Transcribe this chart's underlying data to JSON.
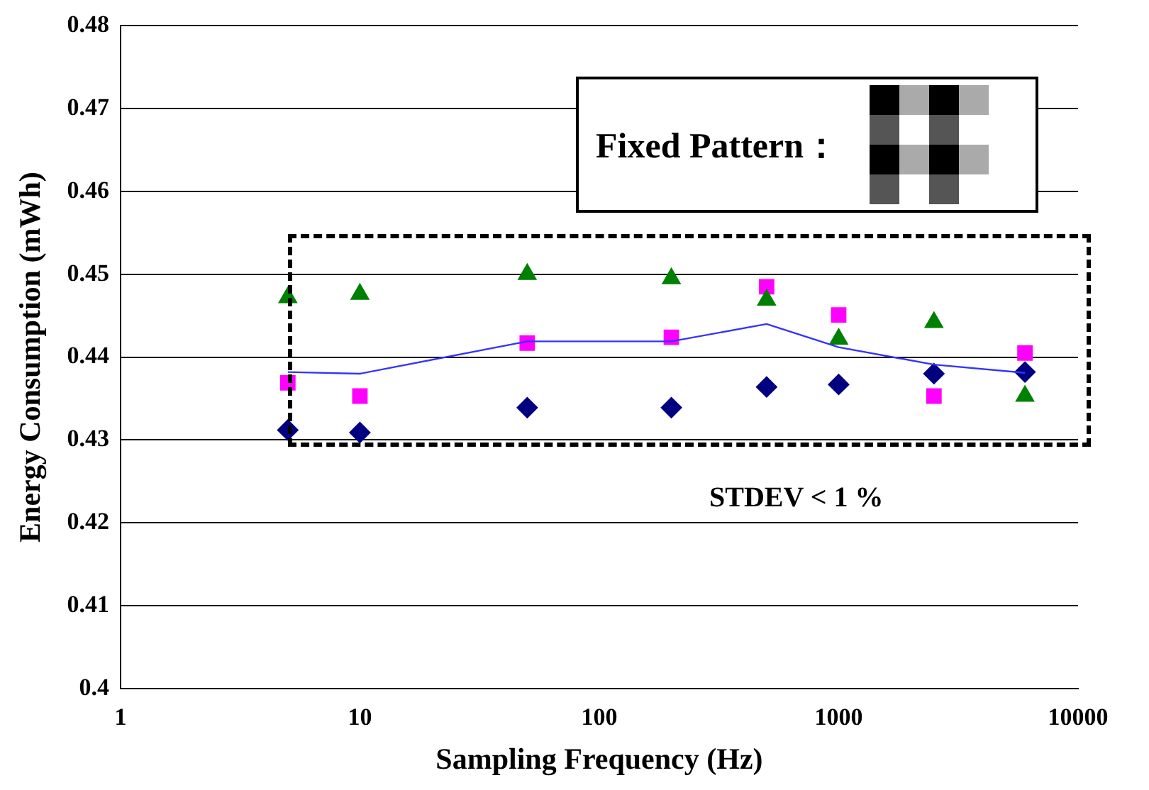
{
  "chart_data": {
    "type": "scatter",
    "xlabel": "Sampling Frequency (Hz)",
    "ylabel": "Energy Consumption (mWh)",
    "x": [
      5,
      10,
      50,
      200,
      500,
      1000,
      2500,
      6000
    ],
    "series": [
      {
        "type": "line",
        "color": "#3333ff",
        "marker": "none",
        "values": [
          0.4382,
          0.438,
          0.4419,
          0.4419,
          0.444,
          0.4412,
          0.4391,
          0.4381
        ]
      },
      {
        "color": "#008000",
        "marker": "triangle",
        "values": [
          0.4472,
          0.4476,
          0.45,
          0.4495,
          0.4469,
          0.4422,
          0.4442,
          0.4353
        ]
      },
      {
        "color": "#ff00ff",
        "marker": "square",
        "values": [
          0.4369,
          0.4353,
          0.4417,
          0.4424,
          0.4485,
          0.4451,
          0.4353,
          0.4405
        ]
      },
      {
        "color": "#000080",
        "marker": "diamond",
        "values": [
          0.4312,
          0.4309,
          0.4339,
          0.4339,
          0.4364,
          0.4367,
          0.438,
          0.4382
        ]
      }
    ],
    "log": "x",
    "xlim": [
      1,
      10000
    ],
    "xticks": [
      1,
      10,
      100,
      1000,
      10000
    ],
    "ylim": [
      0.4,
      0.48
    ],
    "yticks": [
      0.4,
      0.41,
      0.42,
      0.43,
      0.44,
      0.45,
      0.46,
      0.47,
      0.48
    ],
    "grid": "y",
    "legend": false,
    "annotations": [
      "Fixed Pattern：",
      "STDEV < 1 %"
    ]
  }
}
